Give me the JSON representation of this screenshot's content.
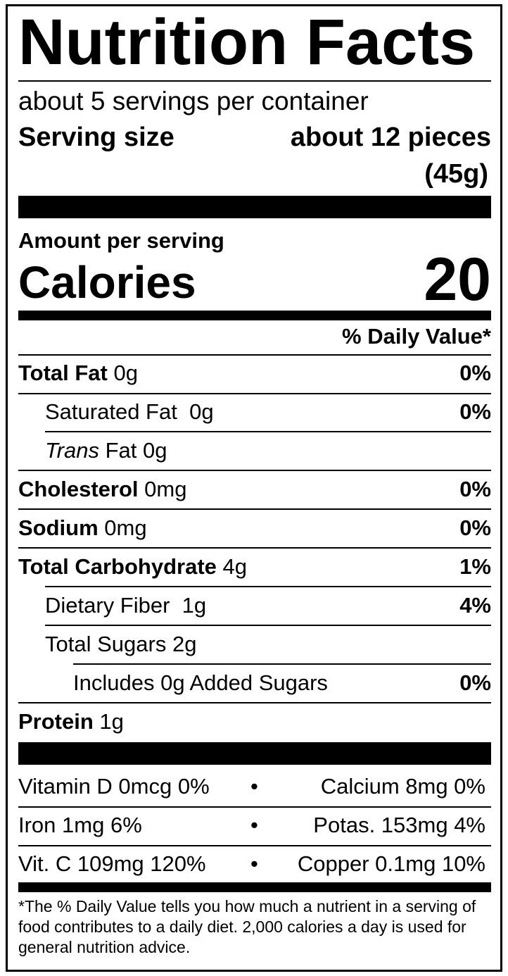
{
  "title": "Nutrition Facts",
  "servings_per_container": "about 5 servings per container",
  "serving_size": {
    "label": "Serving size",
    "value_line1": "about 12 pieces",
    "value_line2": "(45g)"
  },
  "amount_per_serving": "Amount per serving",
  "calories": {
    "label": "Calories",
    "value": "20"
  },
  "daily_value_header": "% Daily Value*",
  "nutrients": [
    {
      "name": "Total Fat",
      "amount": "0g",
      "dv": "0%"
    },
    {
      "name": "Saturated Fat",
      "amount": "0g",
      "dv": "0%"
    },
    {
      "name_italic": "Trans",
      "name": "Fat",
      "amount": "0g",
      "dv": ""
    },
    {
      "name": "Cholesterol",
      "amount": "0mg",
      "dv": "0%"
    },
    {
      "name": "Sodium",
      "amount": "0mg",
      "dv": "0%"
    },
    {
      "name": "Total Carbohydrate",
      "amount": "4g",
      "dv": "1%"
    },
    {
      "name": "Dietary Fiber",
      "amount": "1g",
      "dv": "4%"
    },
    {
      "name": "Total Sugars",
      "amount": "2g",
      "dv": ""
    },
    {
      "name": "Includes 0g Added Sugars",
      "amount": "",
      "dv": "0%"
    },
    {
      "name": "Protein",
      "amount": "1g",
      "dv": ""
    }
  ],
  "vitamins": [
    {
      "left": "Vitamin D 0mcg 0%",
      "right": "Calcium 8mg 0%"
    },
    {
      "left": "Iron 1mg 6%",
      "right": "Potas. 153mg 4%"
    },
    {
      "left": "Vit. C 109mg 120%",
      "right": "Copper 0.1mg 10%"
    }
  ],
  "separator": "•",
  "footnote": "*The % Daily Value tells you how much a nutrient in a serving of food contributes to a daily diet. 2,000 calories a day is used for general nutrition advice."
}
